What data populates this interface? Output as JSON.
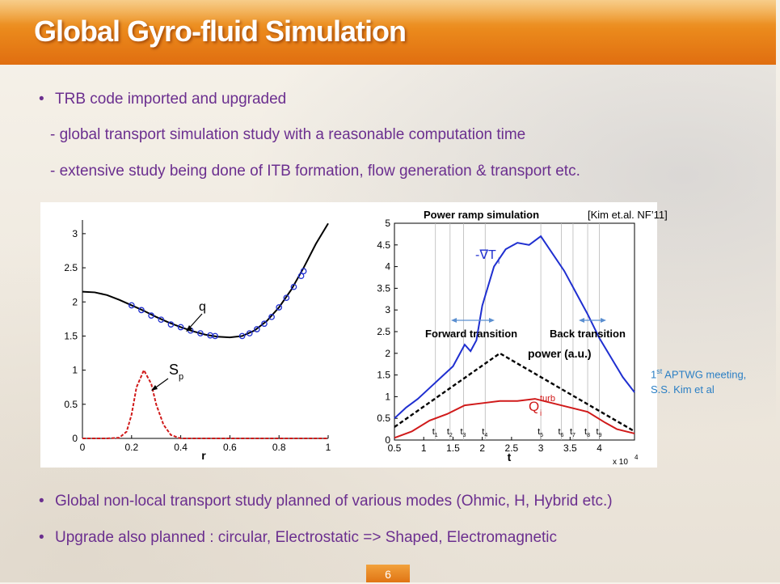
{
  "slide": {
    "title": "Global Gyro-fluid Simulation",
    "page_number": "6"
  },
  "bullets": {
    "b1": "TRB code imported and upgraded",
    "b1_sub1": "- global transport simulation study with a reasonable computation time",
    "b1_sub2": "- extensive study being done of ITB formation, flow generation & transport etc.",
    "b2": "Global non-local transport study planned of various modes (Ohmic, H, Hybrid etc.)",
    "b3": "Upgrade also planned : circular, Electrostatic => Shaped, Electromagnetic",
    "bullet_symbol": "•"
  },
  "citation": {
    "line1_pre": "1",
    "line1_sup": "st",
    "line1_post": " APTWG meeting,",
    "line2": "S.S. Kim et al"
  },
  "chart_data": [
    {
      "type": "line",
      "xlabel": "r",
      "xlim": [
        0,
        1
      ],
      "ylim": [
        0,
        3.2
      ],
      "x_ticks": [
        "0",
        "0.2",
        "0.4",
        "0.6",
        "0.8",
        "1"
      ],
      "y_ticks": [
        "0",
        "0.5",
        "1",
        "1.5",
        "2",
        "2.5",
        "3"
      ],
      "annotations": [
        "q",
        "S",
        "p"
      ],
      "series": [
        {
          "name": "q",
          "color": "#000000",
          "x": [
            0,
            0.05,
            0.1,
            0.15,
            0.2,
            0.25,
            0.3,
            0.35,
            0.4,
            0.45,
            0.5,
            0.55,
            0.6,
            0.65,
            0.7,
            0.75,
            0.8,
            0.85,
            0.9,
            0.95,
            1.0
          ],
          "y": [
            2.15,
            2.14,
            2.1,
            2.03,
            1.95,
            1.87,
            1.78,
            1.7,
            1.63,
            1.57,
            1.52,
            1.49,
            1.48,
            1.5,
            1.58,
            1.72,
            1.92,
            2.18,
            2.5,
            2.85,
            3.15
          ]
        },
        {
          "name": "q sampled",
          "color": "#1f2fd0",
          "marker": "circle",
          "x": [
            0.2,
            0.24,
            0.28,
            0.32,
            0.36,
            0.4,
            0.44,
            0.48,
            0.52,
            0.54,
            0.65,
            0.68,
            0.71,
            0.74,
            0.77,
            0.8,
            0.83,
            0.86,
            0.89,
            0.9
          ],
          "y": [
            1.95,
            1.88,
            1.8,
            1.74,
            1.67,
            1.63,
            1.58,
            1.54,
            1.51,
            1.5,
            1.5,
            1.54,
            1.6,
            1.68,
            1.78,
            1.92,
            2.06,
            2.22,
            2.38,
            2.45
          ]
        },
        {
          "name": "Sp",
          "color": "#d01a1a",
          "dashed": true,
          "x": [
            0,
            0.1,
            0.15,
            0.18,
            0.2,
            0.22,
            0.25,
            0.28,
            0.3,
            0.33,
            0.36,
            0.4,
            0.5,
            0.6,
            0.8,
            1.0
          ],
          "y": [
            0,
            0,
            0.01,
            0.1,
            0.35,
            0.75,
            1.0,
            0.8,
            0.5,
            0.2,
            0.05,
            0,
            0,
            0,
            0,
            0
          ]
        }
      ]
    },
    {
      "type": "line",
      "title": "Power ramp simulation",
      "reference": "[Kim et.al. NF’11]",
      "xlabel": "t",
      "x_multiplier": "x 10",
      "x_multiplier_exp": "4",
      "xlim": [
        0.5,
        4.6
      ],
      "ylim": [
        0,
        5
      ],
      "x_ticks": [
        "0.5",
        "1",
        "1.5",
        "2",
        "2.5",
        "3",
        "3.5",
        "4"
      ],
      "y_ticks": [
        "0",
        "0.5",
        "1",
        "1.5",
        "2",
        "2.5",
        "3",
        "3.5",
        "4",
        "4.5",
        "5"
      ],
      "t_markers": [
        "t1",
        "t2",
        "t3",
        "t4",
        "t5",
        "t6",
        "t7",
        "t8",
        "t9"
      ],
      "t_marker_positions": [
        1.2,
        1.45,
        1.68,
        2.05,
        3.0,
        3.35,
        3.55,
        3.8,
        4.0
      ],
      "annotations": {
        "forward": "Forward transition",
        "back": "Back transition",
        "grad_t": "-∇T",
        "grad_t_sub": "i",
        "power": "power (a.u.)",
        "qturb": "Q",
        "qturb_sup": "turb",
        "qturb_sub": "i"
      },
      "series": [
        {
          "name": "-∇Ti",
          "color": "#1f2fd0",
          "x": [
            0.5,
            0.7,
            0.9,
            1.1,
            1.3,
            1.5,
            1.6,
            1.7,
            1.8,
            1.9,
            2.0,
            2.2,
            2.4,
            2.6,
            2.8,
            3.0,
            3.2,
            3.4,
            3.6,
            3.8,
            4.0,
            4.2,
            4.4,
            4.6
          ],
          "y": [
            0.5,
            0.75,
            0.95,
            1.2,
            1.45,
            1.7,
            1.95,
            2.2,
            2.05,
            2.3,
            3.1,
            4.0,
            4.4,
            4.55,
            4.5,
            4.7,
            4.3,
            3.9,
            3.4,
            2.9,
            2.35,
            1.9,
            1.45,
            1.1
          ]
        },
        {
          "name": "power",
          "color": "#000000",
          "dashed": true,
          "x": [
            0.5,
            2.3,
            4.6
          ],
          "y": [
            0.3,
            2.0,
            0.2
          ]
        },
        {
          "name": "Qturb",
          "color": "#d01a1a",
          "x": [
            0.5,
            0.8,
            1.1,
            1.4,
            1.7,
            2.0,
            2.3,
            2.6,
            2.9,
            3.2,
            3.5,
            3.8,
            4.1,
            4.3,
            4.6
          ],
          "y": [
            0.05,
            0.2,
            0.45,
            0.6,
            0.8,
            0.85,
            0.9,
            0.9,
            0.95,
            0.85,
            0.75,
            0.65,
            0.4,
            0.25,
            0.15
          ]
        }
      ]
    }
  ]
}
